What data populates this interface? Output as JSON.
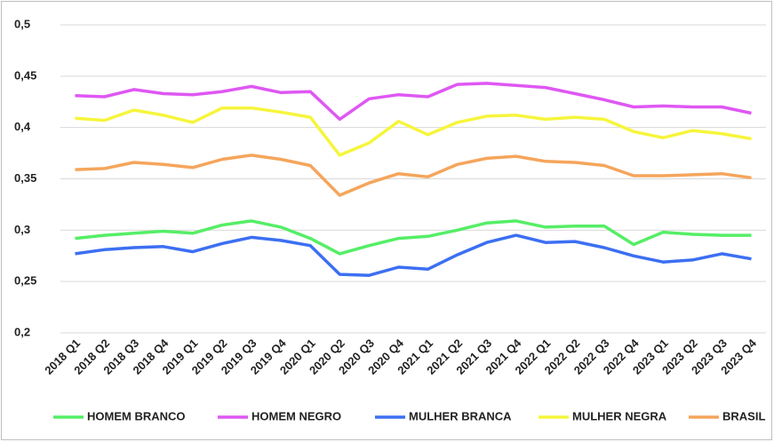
{
  "chart_data": {
    "type": "line",
    "categories": [
      "2018 Q1",
      "2018 Q2",
      "2018 Q3",
      "2018 Q4",
      "2019 Q1",
      "2019 Q2",
      "2019 Q3",
      "2019 Q4",
      "2020 Q1",
      "2020 Q2",
      "2020 Q3",
      "2020 Q4",
      "2021 Q1",
      "2021 Q2",
      "2021 Q3",
      "2021 Q4",
      "2022 Q1",
      "2022 Q2",
      "2022 Q3",
      "2022 Q4",
      "2023 Q1",
      "2023 Q2",
      "2023 Q3",
      "2023 Q4"
    ],
    "series": [
      {
        "name": "HOMEM BRANCO",
        "color": "#55ee66",
        "values": [
          0.292,
          0.295,
          0.297,
          0.299,
          0.297,
          0.305,
          0.309,
          0.303,
          0.292,
          0.277,
          0.285,
          0.292,
          0.294,
          0.3,
          0.307,
          0.309,
          0.303,
          0.304,
          0.304,
          0.286,
          0.298,
          0.296,
          0.295,
          0.295
        ]
      },
      {
        "name": "HOMEM NEGRO",
        "color": "#df57f3",
        "values": [
          0.431,
          0.43,
          0.437,
          0.433,
          0.432,
          0.435,
          0.44,
          0.434,
          0.435,
          0.408,
          0.428,
          0.432,
          0.43,
          0.442,
          0.443,
          0.441,
          0.439,
          0.433,
          0.427,
          0.42,
          0.421,
          0.42,
          0.42,
          0.414
        ]
      },
      {
        "name": "MULHER BRANCA",
        "color": "#3c6ff2",
        "values": [
          0.277,
          0.281,
          0.283,
          0.284,
          0.279,
          0.287,
          0.293,
          0.29,
          0.285,
          0.257,
          0.256,
          0.264,
          0.262,
          0.276,
          0.288,
          0.295,
          0.288,
          0.289,
          0.283,
          0.275,
          0.269,
          0.271,
          0.277,
          0.272
        ]
      },
      {
        "name": "MULHER NEGRA",
        "color": "#f6f53c",
        "values": [
          0.409,
          0.407,
          0.417,
          0.412,
          0.405,
          0.419,
          0.419,
          0.415,
          0.41,
          0.373,
          0.385,
          0.406,
          0.393,
          0.405,
          0.411,
          0.412,
          0.408,
          0.41,
          0.408,
          0.396,
          0.39,
          0.397,
          0.394,
          0.389
        ]
      },
      {
        "name": "BRASIL",
        "color": "#f5a55c",
        "values": [
          0.359,
          0.36,
          0.366,
          0.364,
          0.361,
          0.369,
          0.373,
          0.369,
          0.363,
          0.334,
          0.346,
          0.355,
          0.352,
          0.364,
          0.37,
          0.372,
          0.367,
          0.366,
          0.363,
          0.353,
          0.353,
          0.354,
          0.355,
          0.351
        ]
      }
    ],
    "ylim": [
      0.2,
      0.5
    ],
    "yticks": [
      {
        "value": 0.2,
        "label": "0,2"
      },
      {
        "value": 0.25,
        "label": "0,25"
      },
      {
        "value": 0.3,
        "label": "0,3"
      },
      {
        "value": 0.35,
        "label": "0,35"
      },
      {
        "value": 0.4,
        "label": "0,4"
      },
      {
        "value": 0.45,
        "label": "0,45"
      },
      {
        "value": 0.5,
        "label": "0,5"
      }
    ],
    "grid": true,
    "legend": "bottom"
  }
}
